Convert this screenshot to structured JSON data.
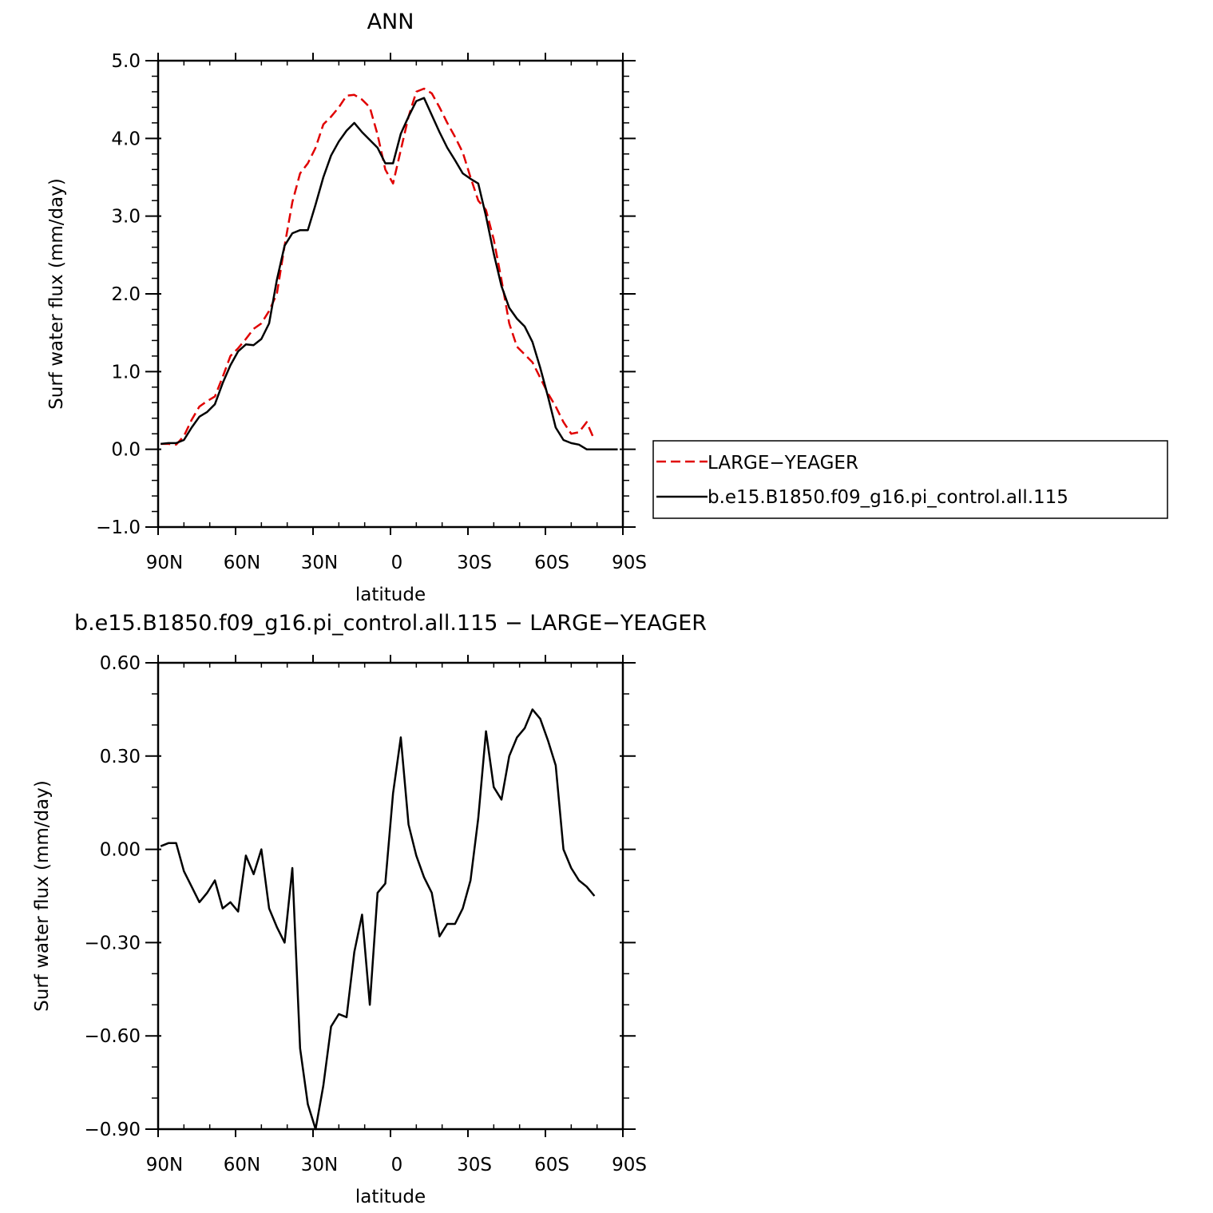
{
  "chart_data": [
    {
      "type": "line",
      "title": "ANN",
      "xlabel": "latitude",
      "ylabel": "Surf water flux (mm/day)",
      "xlim": [
        90,
        -90
      ],
      "ylim": [
        -1.0,
        5.0
      ],
      "xticks": [
        90,
        60,
        30,
        0,
        -30,
        -60,
        -90
      ],
      "xtick_labels": [
        "90N",
        "60N",
        "30N",
        "0",
        "30S",
        "60S",
        "90S"
      ],
      "yticks": [
        -1.0,
        0.0,
        1.0,
        2.0,
        3.0,
        4.0,
        5.0
      ],
      "ytick_labels": [
        "−1.0",
        "0.0",
        "1.0",
        "2.0",
        "3.0",
        "4.0",
        "5.0"
      ],
      "grid": false,
      "legend_position": "right",
      "series": [
        {
          "name": "LARGE−YEAGER",
          "color": "#e00000",
          "dash": "dashed",
          "x": [
            89,
            86,
            83,
            80,
            77,
            74,
            71,
            68,
            65,
            62,
            59,
            56,
            53,
            50,
            47,
            44,
            41,
            38,
            35,
            32,
            29,
            26,
            23,
            20,
            17,
            14,
            11,
            8,
            5,
            2,
            -1,
            -4,
            -7,
            -10,
            -13,
            -16,
            -19,
            -22,
            -25,
            -28,
            -31,
            -34,
            -37,
            -40,
            -43,
            -46,
            -49,
            -52,
            -55,
            -58,
            -61,
            -64,
            -67,
            -70,
            -73,
            -76,
            -79
          ],
          "y": [
            0.07,
            0.07,
            0.06,
            0.17,
            0.38,
            0.55,
            0.62,
            0.68,
            0.93,
            1.2,
            1.3,
            1.42,
            1.55,
            1.62,
            1.78,
            2.0,
            2.62,
            3.18,
            3.55,
            3.68,
            3.88,
            4.18,
            4.28,
            4.4,
            4.55,
            4.56,
            4.5,
            4.4,
            4.05,
            3.6,
            3.42,
            3.85,
            4.28,
            4.6,
            4.64,
            4.58,
            4.4,
            4.2,
            4.02,
            3.82,
            3.5,
            3.2,
            3.08,
            2.7,
            2.18,
            1.62,
            1.32,
            1.22,
            1.12,
            0.92,
            0.72,
            0.55,
            0.35,
            0.2,
            0.22,
            0.35,
            0.12
          ]
        },
        {
          "name": "b.e15.B1850.f09_g16.pi_control.all.115",
          "color": "#000000",
          "dash": "solid",
          "x": [
            89,
            86,
            83,
            80,
            77,
            74,
            71,
            68,
            65,
            62,
            59,
            56,
            53,
            50,
            47,
            44,
            41,
            38,
            35,
            32,
            29,
            26,
            23,
            20,
            17,
            14,
            11,
            8,
            5,
            2,
            -1,
            -4,
            -7,
            -10,
            -13,
            -16,
            -19,
            -22,
            -25,
            -28,
            -31,
            -34,
            -37,
            -40,
            -43,
            -46,
            -49,
            -52,
            -55,
            -58,
            -61,
            -64,
            -67,
            -70,
            -73,
            -76,
            -79,
            -82,
            -85,
            -88
          ],
          "y": [
            0.07,
            0.08,
            0.08,
            0.12,
            0.28,
            0.42,
            0.48,
            0.58,
            0.85,
            1.08,
            1.26,
            1.35,
            1.34,
            1.42,
            1.62,
            2.18,
            2.62,
            2.78,
            2.82,
            2.82,
            3.15,
            3.5,
            3.78,
            3.96,
            4.1,
            4.2,
            4.08,
            3.98,
            3.88,
            3.68,
            3.68,
            4.06,
            4.28,
            4.48,
            4.52,
            4.3,
            4.08,
            3.88,
            3.72,
            3.55,
            3.48,
            3.42,
            3.0,
            2.52,
            2.1,
            1.82,
            1.68,
            1.58,
            1.38,
            1.05,
            0.68,
            0.28,
            0.12,
            0.08,
            0.06,
            0.0,
            0.0,
            0.0,
            0.0,
            0.0
          ]
        }
      ]
    },
    {
      "type": "line",
      "title": "b.e15.B1850.f09_g16.pi_control.all.115 − LARGE−YEAGER",
      "xlabel": "latitude",
      "ylabel": "Surf water flux (mm/day)",
      "xlim": [
        90,
        -90
      ],
      "ylim": [
        -0.9,
        0.6
      ],
      "xticks": [
        90,
        60,
        30,
        0,
        -30,
        -60,
        -90
      ],
      "xtick_labels": [
        "90N",
        "60N",
        "30N",
        "0",
        "30S",
        "60S",
        "90S"
      ],
      "yticks": [
        -0.9,
        -0.6,
        -0.3,
        0.0,
        0.3,
        0.6
      ],
      "ytick_labels": [
        "−0.90",
        "−0.60",
        "−0.30",
        "0.00",
        "0.30",
        "0.60"
      ],
      "grid": false,
      "series": [
        {
          "color": "#000000",
          "dash": "solid",
          "x": [
            89,
            86,
            83,
            80,
            77,
            74,
            71,
            68,
            65,
            62,
            59,
            56,
            53,
            50,
            47,
            44,
            41,
            38,
            35,
            32,
            29,
            26,
            23,
            20,
            17,
            14,
            11,
            8,
            5,
            2,
            -1,
            -4,
            -7,
            -10,
            -13,
            -16,
            -19,
            -22,
            -25,
            -28,
            -31,
            -34,
            -37,
            -40,
            -43,
            -46,
            -49,
            -52,
            -55,
            -58,
            -61,
            -64,
            -67,
            -70,
            -73,
            -76,
            -79
          ],
          "y": [
            0.01,
            0.02,
            0.02,
            -0.07,
            -0.12,
            -0.17,
            -0.14,
            -0.1,
            -0.19,
            -0.17,
            -0.2,
            -0.02,
            -0.08,
            0.0,
            -0.19,
            -0.25,
            -0.3,
            -0.06,
            -0.64,
            -0.82,
            -0.9,
            -0.76,
            -0.57,
            -0.53,
            -0.54,
            -0.33,
            -0.21,
            -0.5,
            -0.14,
            -0.11,
            0.18,
            0.36,
            0.08,
            -0.02,
            -0.09,
            -0.14,
            -0.28,
            -0.24,
            -0.24,
            -0.19,
            -0.1,
            0.1,
            0.38,
            0.2,
            0.16,
            0.3,
            0.36,
            0.39,
            0.45,
            0.42,
            0.35,
            0.27,
            0.0,
            -0.06,
            -0.1,
            -0.12,
            -0.15
          ]
        }
      ]
    }
  ]
}
